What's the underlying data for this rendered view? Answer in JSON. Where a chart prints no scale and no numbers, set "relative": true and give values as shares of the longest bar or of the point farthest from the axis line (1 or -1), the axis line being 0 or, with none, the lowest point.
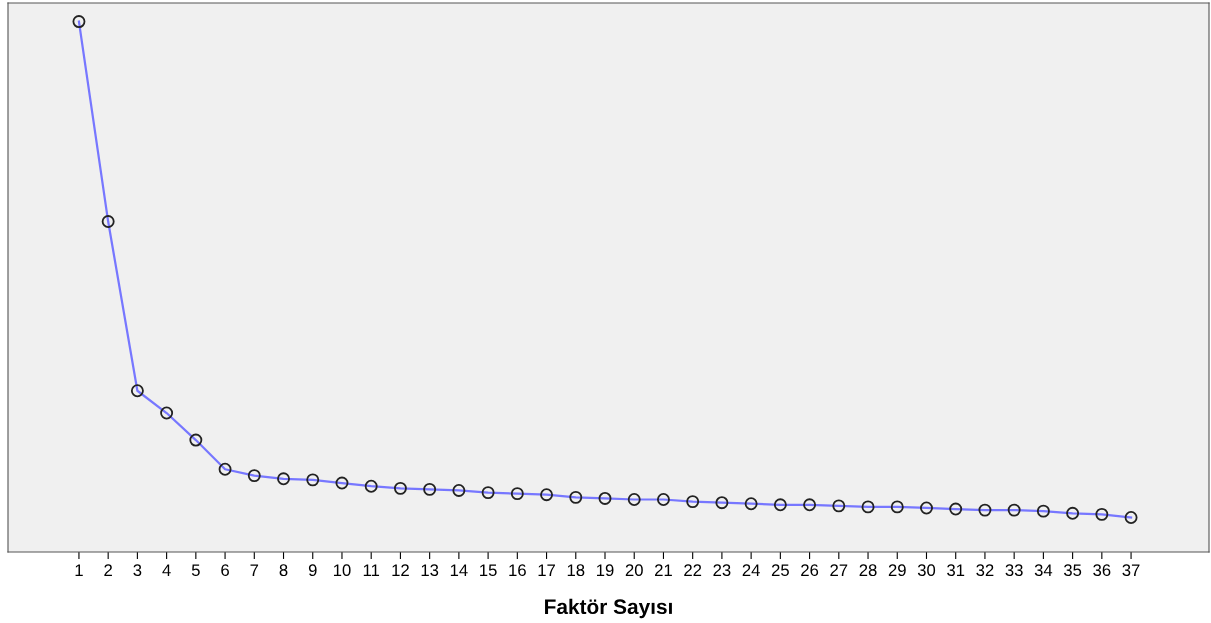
{
  "chart_data": {
    "type": "line",
    "xlabel": "Faktör Sayısı",
    "relative": true,
    "marker": "circle",
    "color": "#7777ff",
    "categories": [
      "1",
      "2",
      "3",
      "4",
      "5",
      "6",
      "7",
      "8",
      "9",
      "10",
      "11",
      "12",
      "13",
      "14",
      "15",
      "16",
      "17",
      "18",
      "19",
      "20",
      "21",
      "22",
      "23",
      "24",
      "25",
      "26",
      "27",
      "28",
      "29",
      "30",
      "31",
      "32",
      "33",
      "34",
      "35",
      "36",
      "37"
    ],
    "values": [
      1,
      0.623,
      0.304,
      0.262,
      0.211,
      0.156,
      0.144,
      0.138,
      0.136,
      0.13,
      0.124,
      0.12,
      0.118,
      0.116,
      0.112,
      0.11,
      0.108,
      0.103,
      0.101,
      0.099,
      0.099,
      0.095,
      0.093,
      0.091,
      0.089,
      0.089,
      0.087,
      0.085,
      0.085,
      0.083,
      0.081,
      0.079,
      0.079,
      0.077,
      0.073,
      0.071,
      0.065
    ]
  }
}
